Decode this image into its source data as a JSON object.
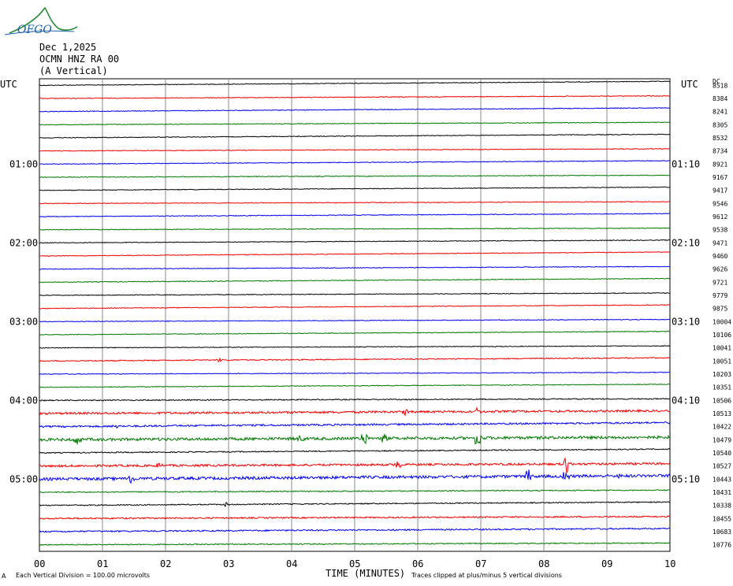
{
  "logo": {
    "text": "OFGO"
  },
  "header": {
    "date": "Dec 1,2025",
    "station": "OCMN HNZ RA 00",
    "component": "(A Vertical)"
  },
  "labels": {
    "left_utc": "UTC",
    "right_utc": "UTC",
    "dc": "DC",
    "x_title": "TIME (MINUTES)",
    "footer_left": "Each Vertical Division = 100.00 microvolts",
    "footer_right": "Traces clipped at plus/minus 5 vertical divisions",
    "footer_mark": "A"
  },
  "colors": {
    "series": [
      "#000000",
      "#ee0000",
      "#0000ee",
      "#007700"
    ],
    "grid": "#888888"
  },
  "chart_data": {
    "type": "line",
    "title": "OCMN HNZ RA 00",
    "xlabel": "TIME (MINUTES)",
    "x_range": [
      0,
      10
    ],
    "x_ticks": [
      "00",
      "01",
      "02",
      "03",
      "04",
      "05",
      "06",
      "07",
      "08",
      "09",
      "10"
    ],
    "left_time_labels": [
      {
        "trace": 6,
        "text": "01:00"
      },
      {
        "trace": 12,
        "text": "02:00"
      },
      {
        "trace": 18,
        "text": "03:00"
      },
      {
        "trace": 24,
        "text": "04:00"
      },
      {
        "trace": 30,
        "text": "05:00"
      }
    ],
    "right_time_labels": [
      {
        "trace": 6,
        "text": "01:10"
      },
      {
        "trace": 12,
        "text": "02:10"
      },
      {
        "trace": 18,
        "text": "03:10"
      },
      {
        "trace": 24,
        "text": "04:10"
      },
      {
        "trace": 30,
        "text": "05:10"
      }
    ],
    "dc_offsets": [
      8518,
      8384,
      8241,
      8305,
      8532,
      8734,
      8921,
      9167,
      9417,
      9546,
      9612,
      9538,
      9471,
      9460,
      9626,
      9721,
      9779,
      9875,
      10004,
      10106,
      10041,
      10051,
      10203,
      10351,
      10506,
      10513,
      10422,
      10479,
      10540,
      10527,
      10443,
      10431,
      10338,
      10455,
      10683,
      10776
    ],
    "trace_colors_cycle": [
      "black",
      "red",
      "blue",
      "green"
    ],
    "trace_amplitude": [
      1,
      1,
      1,
      1,
      1,
      1,
      1,
      1,
      1,
      1,
      1,
      1,
      1,
      1,
      1,
      1,
      1,
      1,
      1,
      1,
      1,
      1.5,
      1,
      1,
      1.5,
      3,
      2.5,
      4,
      1.5,
      3,
      4,
      1.5,
      1.5,
      2,
      2,
      1.5
    ],
    "events": [
      {
        "trace": 21,
        "minute": 2.85,
        "amplitude": 3
      },
      {
        "trace": 25,
        "minute": 5.8,
        "amplitude": 5
      },
      {
        "trace": 25,
        "minute": 6.95,
        "amplitude": 5
      },
      {
        "trace": 26,
        "minute": 1.2,
        "amplitude": 3
      },
      {
        "trace": 27,
        "minute": 0.6,
        "amplitude": 8
      },
      {
        "trace": 27,
        "minute": 4.15,
        "amplitude": 5
      },
      {
        "trace": 27,
        "minute": 5.15,
        "amplitude": 12
      },
      {
        "trace": 27,
        "minute": 5.45,
        "amplitude": 8
      },
      {
        "trace": 27,
        "minute": 6.95,
        "amplitude": 14
      },
      {
        "trace": 29,
        "minute": 1.9,
        "amplitude": 4
      },
      {
        "trace": 29,
        "minute": 5.7,
        "amplitude": 6
      },
      {
        "trace": 29,
        "minute": 8.37,
        "amplitude": 18
      },
      {
        "trace": 30,
        "minute": 1.45,
        "amplitude": 6
      },
      {
        "trace": 30,
        "minute": 7.75,
        "amplitude": 10
      },
      {
        "trace": 30,
        "minute": 8.35,
        "amplitude": 8
      },
      {
        "trace": 30,
        "minute": 9.15,
        "amplitude": 6
      },
      {
        "trace": 32,
        "minute": 2.95,
        "amplitude": 3
      }
    ]
  }
}
